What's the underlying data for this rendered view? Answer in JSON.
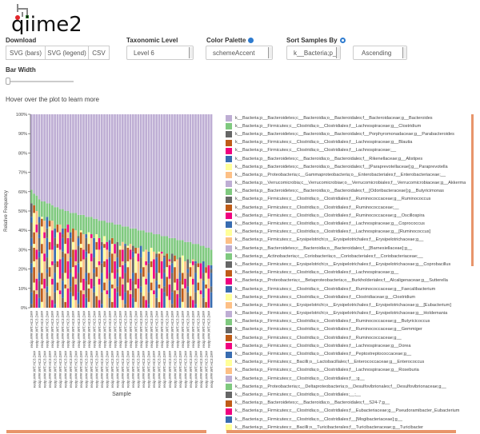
{
  "app": {
    "logo_text": "qiime2"
  },
  "controls": {
    "download_label": "Download",
    "download_buttons": [
      "SVG (bars)",
      "SVG (legend)",
      "CSV"
    ],
    "taxonomic_level_label": "Taxonomic Level",
    "taxonomic_level_value": "Level 6",
    "color_palette_label": "Color Palette",
    "color_palette_value": "schemeAccent",
    "sort_label": "Sort Samples By",
    "sort_value": "k__Bacteria;p__",
    "sort_order": "Ascending",
    "bar_width_label": "Bar Width",
    "bar_width_level": 0.02,
    "hover_hint": "Hover over the plot to learn more"
  },
  "palette": [
    "#beaed4",
    "#7fc97f",
    "#666666",
    "#bf5b17",
    "#f0027f",
    "#386cb0",
    "#ffff99",
    "#fdc086"
  ],
  "legend": [
    "k__Bacteria;p__Bacteroidetes;c__Bacteroidia;o__Bacteroidales;f__Bacteroidaceae;g__Bacteroides",
    "k__Bacteria;p__Firmicutes;c__Clostridia;o__Clostridiales;f__Lachnospiraceae;g__Clostridium",
    "k__Bacteria;p__Bacteroidetes;c__Bacteroidia;o__Bacteroidales;f__Porphyromonadaceae;g__Parabacteroides",
    "k__Bacteria;p__Firmicutes;c__Clostridia;o__Clostridiales;f__Lachnospiraceae;g__Blautia",
    "k__Bacteria;p__Firmicutes;c__Clostridia;o__Clostridiales;f__Lachnospiraceae;__",
    "k__Bacteria;p__Bacteroidetes;c__Bacteroidia;o__Bacteroidales;f__Rikenellaceae;g__Alistipes",
    "k__Bacteria;p__Bacteroidetes;c__Bacteroidia;o__Bacteroidales;f__[Paraprevotellaceae];g__Paraprevotella",
    "k__Bacteria;p__Proteobacteria;c__Gammaproteobacteria;o__Enterobacteriales;f__Enterobacteriaceae;__",
    "k__Bacteria;p__Verrucomicrobia;c__Verrucomicrobiae;o__Verrucomicrobiales;f__Verrucomicrobiaceae;g__Akkermansia",
    "k__Bacteria;p__Bacteroidetes;c__Bacteroidia;o__Bacteroidales;f__[Odoribacteraceae];g__Butyricimonas",
    "k__Bacteria;p__Firmicutes;c__Clostridia;o__Clostridiales;f__Ruminococcaceae;g__Ruminococcus",
    "k__Bacteria;p__Firmicutes;c__Clostridia;o__Clostridiales;f__Ruminococcaceae;__",
    "k__Bacteria;p__Firmicutes;c__Clostridia;o__Clostridiales;f__Ruminococcaceae;g__Oscillospira",
    "k__Bacteria;p__Firmicutes;c__Clostridia;o__Clostridiales;f__Lachnospiraceae;g__Coprococcus",
    "k__Bacteria;p__Firmicutes;c__Clostridia;o__Clostridiales;f__Lachnospiraceae;g__[Ruminococcus]",
    "k__Bacteria;p__Firmicutes;c__Erysipelotrichi;o__Erysipelotrichales;f__Erysipelotrichaceae;g__",
    "k__Bacteria;p__Bacteroidetes;c__Bacteroidia;o__Bacteroidales;f__[Barnesiellaceae];g__",
    "k__Bacteria;p__Actinobacteria;c__Coriobacteriia;o__Coriobacteriales;f__Coriobacteriaceae;__",
    "k__Bacteria;p__Firmicutes;c__Erysipelotrichi;o__Erysipelotrichales;f__Erysipelotrichaceae;g__Coprobacillus",
    "k__Bacteria;p__Firmicutes;c__Clostridia;o__Clostridiales;f__Lachnospiraceae;g__",
    "k__Bacteria;p__Proteobacteria;c__Betaproteobacteria;o__Burkholderiales;f__Alcaligenaceae;g__Sutterella",
    "k__Bacteria;p__Firmicutes;c__Clostridia;o__Clostridiales;f__Ruminococcaceae;g__Faecalibacterium",
    "k__Bacteria;p__Firmicutes;c__Clostridia;o__Clostridiales;f__Clostridiaceae;g__Clostridium",
    "k__Bacteria;p__Firmicutes;c__Erysipelotrichi;o__Erysipelotrichales;f__Erysipelotrichaceae;g__[Eubacterium]",
    "k__Bacteria;p__Firmicutes;c__Erysipelotrichi;o__Erysipelotrichales;f__Erysipelotrichaceae;g__Holdemania",
    "k__Bacteria;p__Firmicutes;c__Clostridia;o__Clostridiales;f__Ruminococcaceae;g__Butyricicoccus",
    "k__Bacteria;p__Firmicutes;c__Clostridia;o__Clostridiales;f__Ruminococcaceae;g__Gemmiger",
    "k__Bacteria;p__Firmicutes;c__Clostridia;o__Clostridiales;f__Ruminococcaceae;g__",
    "k__Bacteria;p__Firmicutes;c__Clostridia;o__Clostridiales;f__Lachnospiraceae;g__Dorea",
    "k__Bacteria;p__Firmicutes;c__Clostridia;o__Clostridiales;f__Peptostreptococcaceae;g__",
    "k__Bacteria;p__Firmicutes;c__Bacilli;o__Lactobacillales;f__Enterococcaceae;g__Enterococcus",
    "k__Bacteria;p__Firmicutes;c__Clostridia;o__Clostridiales;f__Lachnospiraceae;g__Roseburia",
    "k__Bacteria;p__Firmicutes;c__Clostridia;o__Clostridiales;f__;g__",
    "k__Bacteria;p__Proteobacteria;c__Deltaproteobacteria;o__Desulfovibrionales;f__Desulfovibrionaceae;g__",
    "k__Bacteria;p__Firmicutes;c__Clostridia;o__Clostridiales;__;__",
    "k__Bacteria;p__Bacteroidetes;c__Bacteroidia;o__Bacteroidales;f__S24-7;g__",
    "k__Bacteria;p__Firmicutes;c__Clostridia;o__Clostridiales;f__Eubacteriaceae;g__Pseudoramibacter_Eubacterium",
    "k__Bacteria;p__Firmicutes;c__Clostridia;o__Clostridiales;f__[Mogibacteriaceae];g__",
    "k__Bacteria;p__Firmicutes;c__Bacilli;o__Turicibacterales;f__Turicibacteraceae;g__Turicibacter",
    "k__Bacteria;p__Actinobacteria;c__Actinobacteria;o__Bifidobacteriales;f__Bifidobacteriaceae;g__Bifidobacterium"
  ],
  "chart_data": {
    "type": "bar",
    "stacked": true,
    "xlabel": "Sample",
    "ylabel": "Relative Frequency",
    "ylim": [
      0,
      100
    ],
    "yticks": [
      "0%",
      "10%",
      "20%",
      "30%",
      "40%",
      "50%",
      "60%",
      "70%",
      "80%",
      "90%",
      "100%"
    ],
    "sample_label_pattern": "recip.###.WT.HC3.D##",
    "series": [
      {
        "name": "k__Bacteria;p__Bacteroidetes;c__Bacteroidia;o__Bacteroidales;f__Bacteroidaceae;g__Bacteroides",
        "values": [
          39,
          41,
          42,
          44,
          45,
          45,
          46,
          46,
          47,
          48,
          48,
          49,
          49,
          50,
          50,
          51,
          51,
          51,
          52,
          52,
          52,
          53,
          53,
          53,
          54,
          54,
          55,
          55,
          55,
          56,
          56,
          56,
          57,
          57,
          57,
          58,
          58,
          58,
          59,
          59,
          59,
          60,
          60,
          60,
          61,
          61,
          61,
          62,
          62,
          62,
          63,
          63,
          63,
          64,
          64,
          64,
          65,
          65,
          65,
          66,
          66,
          66,
          67,
          67,
          67,
          68,
          68,
          69,
          69,
          70
        ]
      },
      {
        "name": "k__Bacteria;p__Firmicutes;c__Clostridia;o__Clostridiales;f__Lachnospiraceae;g__Clostridium",
        "values": [
          7,
          6,
          8,
          9,
          8,
          10,
          7,
          9,
          8,
          11,
          9,
          8,
          10,
          9,
          7,
          10,
          8,
          9,
          11,
          8,
          10,
          9,
          8,
          9,
          10,
          8,
          9,
          11,
          8,
          10,
          9,
          8,
          10,
          9,
          11,
          8,
          9,
          10,
          8,
          9,
          10,
          9,
          8,
          11,
          9,
          10,
          8,
          9,
          10,
          9,
          8,
          10,
          9,
          11,
          8,
          9,
          10,
          9,
          8,
          10,
          9,
          11,
          8,
          9,
          10,
          9,
          8,
          10,
          9,
          8
        ]
      }
    ]
  }
}
